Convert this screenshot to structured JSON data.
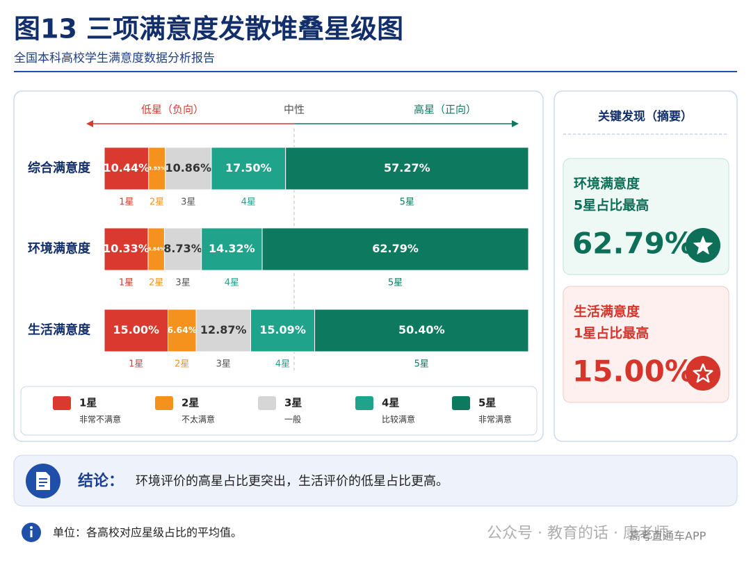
{
  "header": {
    "title": "图13 三项满意度发散堆叠星级图",
    "subtitle": "全国本科高校学生满意度数据分析报告"
  },
  "chart_data": {
    "type": "bar",
    "orientation": "horizontal",
    "stacked": true,
    "direction_labels": {
      "low": "低星（负向）",
      "neutral": "中性",
      "high": "高星（正向）"
    },
    "categories": [
      "综合满意度",
      "环境满意度",
      "生活满意度"
    ],
    "xlim": [
      0,
      100
    ],
    "series": [
      {
        "name": "1星",
        "description": "非常不满意",
        "color": "#d9392e",
        "label_color": "#ffffff",
        "values": [
          10.44,
          10.33,
          15.0
        ],
        "value_labels": [
          "10.44%",
          "10.33%",
          "15.00%"
        ]
      },
      {
        "name": "2星",
        "description": "不太满意",
        "color": "#f5921e",
        "label_color": "#ffffff",
        "values": [
          3.93,
          3.84,
          6.64
        ],
        "value_labels": [
          "3.93%",
          "3.84%",
          "6.64%"
        ]
      },
      {
        "name": "3星",
        "description": "一般",
        "color": "#d6d6d6",
        "label_color": "#333333",
        "values": [
          10.86,
          8.73,
          12.87
        ],
        "value_labels": [
          "10.86%",
          "8.73%",
          "12.87%"
        ]
      },
      {
        "name": "4星",
        "description": "比较满意",
        "color": "#1fa38b",
        "label_color": "#ffffff",
        "values": [
          17.5,
          14.32,
          15.09
        ],
        "value_labels": [
          "17.50%",
          "14.32%",
          "15.09%"
        ]
      },
      {
        "name": "5星",
        "description": "非常满意",
        "color": "#0d7a5f",
        "label_color": "#ffffff",
        "values": [
          57.27,
          62.79,
          50.4
        ],
        "value_labels": [
          "57.27%",
          "62.79%",
          "50.40%"
        ]
      }
    ]
  },
  "findings": {
    "title": "关键发现（摘要）",
    "cards": [
      {
        "subject": "环境满意度",
        "note": "5星占比最高",
        "figure": "62.79%",
        "color": "#0d6f57"
      },
      {
        "subject": "生活满意度",
        "note": "1星占比最高",
        "figure": "15.00%",
        "color": "#d6352b"
      }
    ]
  },
  "conclusion": {
    "label": "结论：",
    "text": "环境评价的高星占比更突出，生活评价的低星占比更高。"
  },
  "footnote": "单位：各高校对应星级占比的平均值。",
  "watermark": {
    "main": "公众号 · 教育的话 · 康老师",
    "sub": "高考直通车APP"
  }
}
